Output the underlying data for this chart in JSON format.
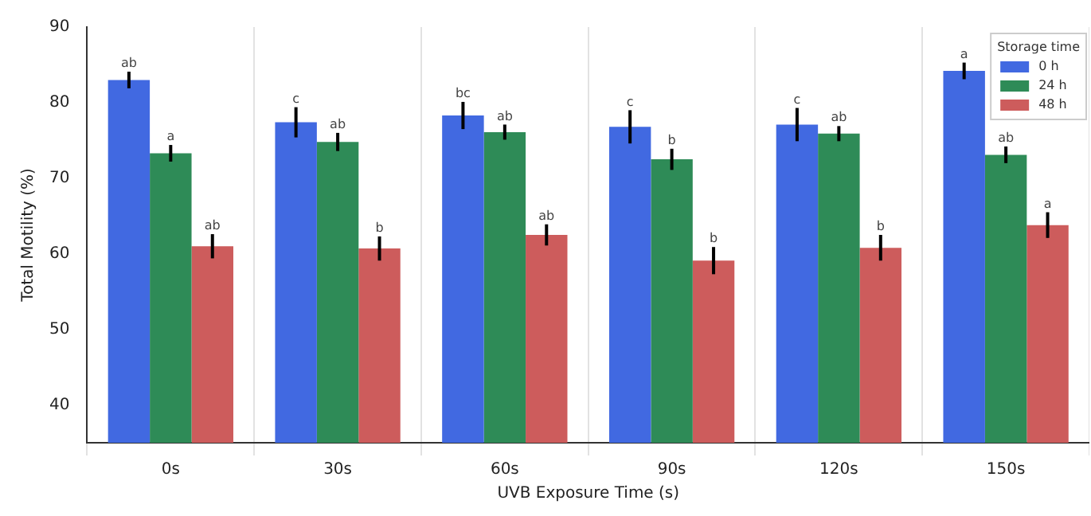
{
  "chart_data": {
    "type": "bar",
    "xlabel": "UVB Exposure Time (s)",
    "ylabel": "Total Motility (%)",
    "legend_title": "Storage time",
    "categories": [
      "0s",
      "30s",
      "60s",
      "90s",
      "120s",
      "150s"
    ],
    "series": [
      {
        "name": "0 h",
        "color": "#4169e1",
        "values": [
          83.0,
          77.4,
          78.3,
          76.8,
          77.1,
          84.2
        ],
        "errors": [
          1.1,
          2.0,
          1.8,
          2.2,
          2.2,
          1.1
        ],
        "value_labels": [
          "ab",
          "c",
          "bc",
          "c",
          "c",
          "a"
        ]
      },
      {
        "name": "24 h",
        "color": "#2e8b57",
        "values": [
          73.3,
          74.8,
          76.1,
          72.5,
          75.9,
          73.1
        ],
        "errors": [
          1.1,
          1.2,
          1.0,
          1.4,
          1.0,
          1.1
        ],
        "value_labels": [
          "a",
          "ab",
          "ab",
          "b",
          "ab",
          "ab"
        ]
      },
      {
        "name": "48 h",
        "color": "#cd5c5c",
        "values": [
          61.0,
          60.7,
          62.5,
          59.1,
          60.8,
          63.8
        ],
        "errors": [
          1.6,
          1.6,
          1.4,
          1.8,
          1.7,
          1.7
        ],
        "value_labels": [
          "ab",
          "b",
          "ab",
          "b",
          "b",
          "a"
        ]
      }
    ],
    "ylim": [
      35,
      90
    ],
    "yticks": [
      40,
      50,
      60,
      70,
      80,
      90
    ],
    "grid": "x",
    "legend": "top right"
  }
}
